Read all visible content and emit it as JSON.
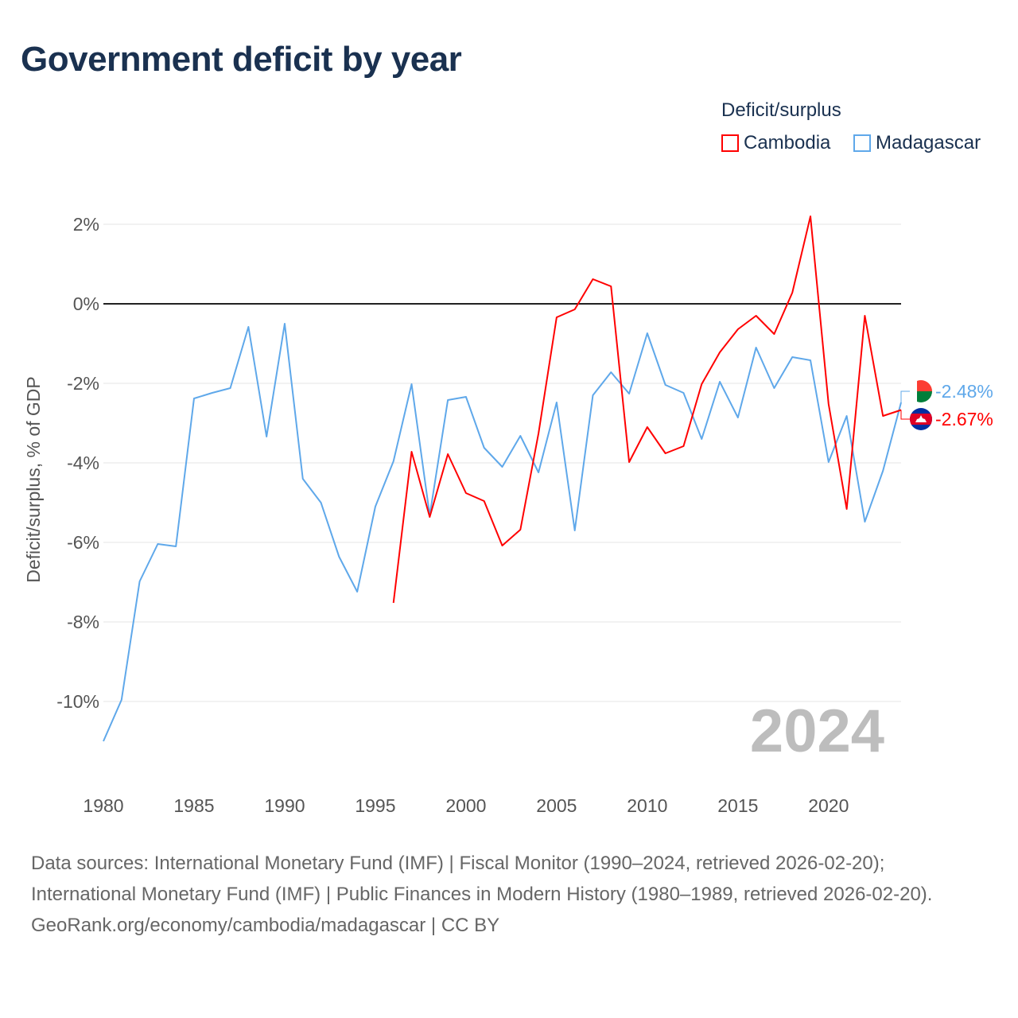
{
  "title": "Government deficit by year",
  "legend_title": "Deficit/surplus",
  "year_label": "2024",
  "footer": {
    "sources": "Data sources: International Monetary Fund (IMF) | Fiscal Monitor (1990–2024, retrieved 2026-02-20); International Monetary Fund (IMF) | Public Finances in Modern History (1980–1989, retrieved 2026-02-20).",
    "credit": "GeoRank.org/economy/cambodia/madagascar | CC BY"
  },
  "chart_data": {
    "type": "line",
    "title": "Government deficit by year",
    "xlabel": "",
    "ylabel": "Deficit/surplus, % of GDP",
    "xlim": [
      1980,
      2024
    ],
    "ylim": [
      -11.2,
      2.4
    ],
    "x_ticks": [
      1980,
      1985,
      1990,
      1995,
      2000,
      2005,
      2010,
      2015,
      2020
    ],
    "y_ticks": [
      2,
      0,
      -2,
      -4,
      -6,
      -8,
      -10
    ],
    "y_tick_labels": [
      "2%",
      "0%",
      "-2%",
      "-4%",
      "-6%",
      "-8%",
      "-10%"
    ],
    "grid": true,
    "legend_position": "top-right",
    "series": [
      {
        "name": "Cambodia",
        "color": "#ff0000",
        "end_label": "-2.67%",
        "x": [
          1996,
          1997,
          1998,
          1999,
          2000,
          2001,
          2002,
          2003,
          2004,
          2005,
          2006,
          2007,
          2008,
          2009,
          2010,
          2011,
          2012,
          2013,
          2014,
          2015,
          2016,
          2017,
          2018,
          2019,
          2020,
          2021,
          2022,
          2023,
          2024
        ],
        "values": [
          -7.52,
          -3.72,
          -5.36,
          -3.78,
          -4.76,
          -4.96,
          -6.08,
          -5.68,
          -3.26,
          -0.34,
          -0.14,
          0.62,
          0.44,
          -3.98,
          -3.1,
          -3.76,
          -3.58,
          -2.02,
          -1.22,
          -0.64,
          -0.3,
          -0.76,
          0.28,
          2.2,
          -2.52,
          -5.16,
          -0.3,
          -2.82,
          -2.67
        ]
      },
      {
        "name": "Madagascar",
        "color": "#5fa8ea",
        "end_label": "-2.48%",
        "x": [
          1980,
          1981,
          1982,
          1983,
          1984,
          1985,
          1986,
          1987,
          1988,
          1989,
          1990,
          1991,
          1992,
          1993,
          1994,
          1995,
          1996,
          1997,
          1998,
          1999,
          2000,
          2001,
          2002,
          2003,
          2004,
          2005,
          2006,
          2007,
          2008,
          2009,
          2010,
          2011,
          2012,
          2013,
          2014,
          2015,
          2016,
          2017,
          2018,
          2019,
          2020,
          2021,
          2022,
          2023,
          2024
        ],
        "values": [
          -11.0,
          -9.96,
          -6.98,
          -6.04,
          -6.1,
          -2.38,
          -2.24,
          -2.12,
          -0.58,
          -3.34,
          -0.5,
          -4.4,
          -5.0,
          -6.36,
          -7.24,
          -5.1,
          -3.96,
          -2.02,
          -5.32,
          -2.42,
          -2.34,
          -3.62,
          -4.1,
          -3.32,
          -4.24,
          -2.48,
          -5.7,
          -2.3,
          -1.72,
          -2.26,
          -0.74,
          -2.04,
          -2.24,
          -3.4,
          -1.96,
          -2.86,
          -1.1,
          -2.12,
          -1.34,
          -1.42,
          -3.98,
          -2.82,
          -5.48,
          -4.2,
          -2.48
        ]
      }
    ]
  }
}
